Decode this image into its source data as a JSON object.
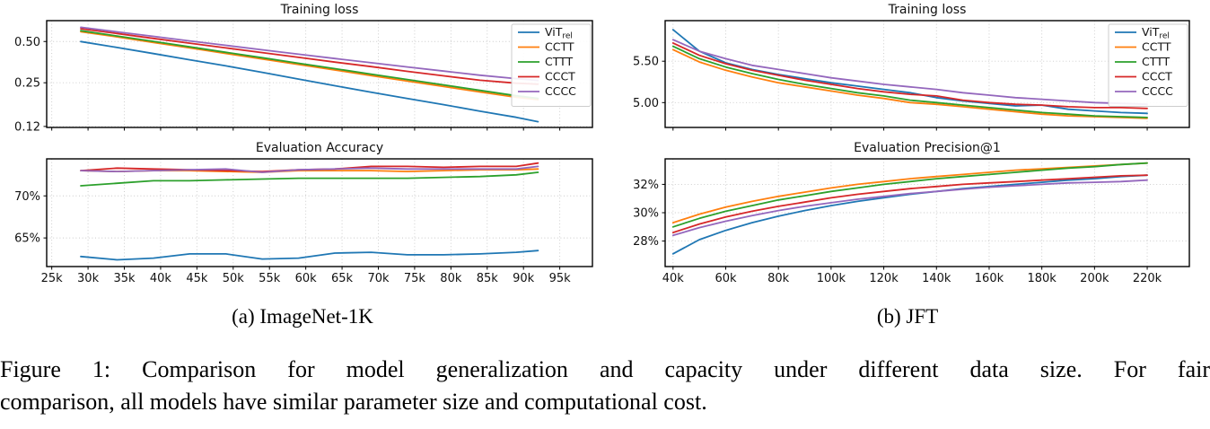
{
  "figure": {
    "subcaption_a": "(a) ImageNet-1K",
    "subcaption_b": "(b) JFT",
    "caption_line1": "Figure 1: Comparison for model generalization and capacity under different data size. For fair",
    "caption_line2": "comparison, all models have similar parameter size and computational cost."
  },
  "palette": {
    "blue": "#1f77b4",
    "orange": "#ff7f0e",
    "green": "#2ca02c",
    "red": "#d62728",
    "purple": "#9467bd",
    "grid": "#c9c9c9",
    "axis": "#000000"
  },
  "chart_data": [
    {
      "id": "imagenet-training-loss",
      "type": "line",
      "title": "Training loss",
      "yscale": "log",
      "grid": true,
      "legend": true,
      "legend_position": "top-right",
      "xlim": [
        24.3,
        99.5
      ],
      "ylim": [
        0.118,
        0.71
      ],
      "xticks": {
        "values": [
          25,
          30,
          35,
          40,
          45,
          50,
          55,
          60,
          65,
          70,
          75,
          80,
          85,
          90,
          95
        ],
        "labels": null
      },
      "yticks": {
        "values": [
          0.5,
          0.25,
          0.12
        ],
        "labels": [
          "0.50",
          "0.25",
          "0.12"
        ]
      },
      "x": [
        29,
        34,
        39,
        44,
        49,
        54,
        59,
        64,
        69,
        74,
        79,
        84,
        89,
        92
      ],
      "series": [
        {
          "name": "ViT_rel",
          "color": "#1f77b4",
          "values": [
            0.5,
            0.452,
            0.408,
            0.368,
            0.332,
            0.298,
            0.266,
            0.238,
            0.213,
            0.192,
            0.173,
            0.155,
            0.14,
            0.13
          ]
        },
        {
          "name": "CCTT",
          "color": "#ff7f0e",
          "values": [
            0.59,
            0.54,
            0.492,
            0.449,
            0.409,
            0.373,
            0.34,
            0.31,
            0.282,
            0.257,
            0.235,
            0.214,
            0.196,
            0.188
          ]
        },
        {
          "name": "CTTT",
          "color": "#2ca02c",
          "values": [
            0.6,
            0.549,
            0.501,
            0.457,
            0.417,
            0.381,
            0.347,
            0.317,
            0.289,
            0.264,
            0.241,
            0.22,
            0.201,
            0.192
          ]
        },
        {
          "name": "CCCT",
          "color": "#d62728",
          "values": [
            0.62,
            0.572,
            0.527,
            0.486,
            0.449,
            0.415,
            0.383,
            0.354,
            0.328,
            0.303,
            0.281,
            0.261,
            0.248,
            0.244
          ]
        },
        {
          "name": "CCCC",
          "color": "#9467bd",
          "values": [
            0.635,
            0.588,
            0.545,
            0.505,
            0.469,
            0.435,
            0.404,
            0.376,
            0.35,
            0.326,
            0.304,
            0.284,
            0.268,
            0.26
          ]
        }
      ]
    },
    {
      "id": "imagenet-eval-accuracy",
      "type": "line",
      "title": "Evaluation Accuracy",
      "yscale": "linear",
      "grid": true,
      "legend": false,
      "xlim": [
        24.3,
        99.5
      ],
      "ylim": [
        61.6,
        74.4
      ],
      "xticks": {
        "values": [
          25,
          30,
          35,
          40,
          45,
          50,
          55,
          60,
          65,
          70,
          75,
          80,
          85,
          90,
          95
        ],
        "labels": [
          "25k",
          "30k",
          "35k",
          "40k",
          "45k",
          "50k",
          "55k",
          "60k",
          "65k",
          "70k",
          "75k",
          "80k",
          "85k",
          "90k",
          "95k"
        ]
      },
      "yticks": {
        "values": [
          70,
          65
        ],
        "labels": [
          "70%",
          "65%"
        ]
      },
      "x": [
        29,
        34,
        39,
        44,
        49,
        54,
        59,
        64,
        69,
        74,
        79,
        84,
        89,
        92
      ],
      "series": [
        {
          "name": "ViT_rel",
          "color": "#1f77b4",
          "values": [
            62.8,
            62.4,
            62.6,
            63.1,
            63.1,
            62.5,
            62.6,
            63.2,
            63.3,
            63.0,
            63.0,
            63.1,
            63.3,
            63.5
          ]
        },
        {
          "name": "CCTT",
          "color": "#ff7f0e",
          "values": [
            73.0,
            72.9,
            73.0,
            73.0,
            72.9,
            72.8,
            73.0,
            73.0,
            73.0,
            72.9,
            73.0,
            73.1,
            73.1,
            73.2
          ]
        },
        {
          "name": "CTTT",
          "color": "#2ca02c",
          "values": [
            71.2,
            71.5,
            71.8,
            71.8,
            71.9,
            72.0,
            72.1,
            72.1,
            72.1,
            72.1,
            72.2,
            72.3,
            72.5,
            72.8
          ]
        },
        {
          "name": "CCCT",
          "color": "#d62728",
          "values": [
            73.0,
            73.3,
            73.2,
            73.1,
            73.0,
            72.9,
            73.1,
            73.2,
            73.5,
            73.5,
            73.4,
            73.5,
            73.5,
            73.9
          ]
        },
        {
          "name": "CCCC",
          "color": "#9467bd",
          "values": [
            73.0,
            72.9,
            73.0,
            73.1,
            73.2,
            72.8,
            73.1,
            73.2,
            73.3,
            73.2,
            73.2,
            73.2,
            73.2,
            73.5
          ]
        }
      ]
    },
    {
      "id": "jft-training-loss",
      "type": "line",
      "title": "Training loss",
      "yscale": "linear",
      "grid": true,
      "legend": true,
      "legend_position": "top-right",
      "xlim": [
        37,
        236
      ],
      "ylim": [
        4.7,
        5.99
      ],
      "xticks": {
        "values": [
          40,
          60,
          80,
          100,
          120,
          140,
          160,
          180,
          200,
          220
        ],
        "labels": null
      },
      "yticks": {
        "values": [
          5.5,
          5.0
        ],
        "labels": [
          "5.50",
          "5.00"
        ]
      },
      "x": [
        40,
        50,
        60,
        70,
        80,
        90,
        100,
        110,
        120,
        130,
        140,
        150,
        160,
        170,
        180,
        190,
        200,
        210,
        220
      ],
      "series": [
        {
          "name": "ViT_rel",
          "color": "#1f77b4",
          "values": [
            5.88,
            5.62,
            5.48,
            5.4,
            5.34,
            5.29,
            5.24,
            5.2,
            5.16,
            5.12,
            5.06,
            5.02,
            4.99,
            4.96,
            4.97,
            4.92,
            4.9,
            4.88,
            4.87
          ]
        },
        {
          "name": "CCTT",
          "color": "#ff7f0e",
          "values": [
            5.64,
            5.49,
            5.39,
            5.31,
            5.24,
            5.19,
            5.14,
            5.09,
            5.05,
            5.0,
            4.98,
            4.95,
            4.92,
            4.89,
            4.86,
            4.84,
            4.83,
            4.82,
            4.81
          ]
        },
        {
          "name": "CTTT",
          "color": "#2ca02c",
          "values": [
            5.68,
            5.53,
            5.43,
            5.35,
            5.28,
            5.22,
            5.17,
            5.12,
            5.08,
            5.03,
            5.0,
            4.97,
            4.94,
            4.91,
            4.88,
            4.86,
            4.84,
            4.83,
            4.82
          ]
        },
        {
          "name": "CCCT",
          "color": "#d62728",
          "values": [
            5.72,
            5.57,
            5.47,
            5.39,
            5.33,
            5.27,
            5.22,
            5.17,
            5.13,
            5.1,
            5.08,
            5.03,
            5.0,
            4.98,
            4.97,
            4.95,
            4.94,
            4.94,
            4.93
          ]
        },
        {
          "name": "CCCC",
          "color": "#9467bd",
          "values": [
            5.76,
            5.62,
            5.53,
            5.45,
            5.4,
            5.35,
            5.3,
            5.26,
            5.22,
            5.19,
            5.16,
            5.12,
            5.09,
            5.06,
            5.04,
            5.02,
            5.0,
            4.99,
            4.98
          ]
        }
      ]
    },
    {
      "id": "jft-eval-precision",
      "type": "line",
      "title": "Evaluation Precision@1",
      "yscale": "linear",
      "grid": true,
      "legend": false,
      "xlim": [
        37,
        236
      ],
      "ylim": [
        26.2,
        33.8
      ],
      "xticks": {
        "values": [
          40,
          60,
          80,
          100,
          120,
          140,
          160,
          180,
          200,
          220
        ],
        "labels": [
          "40k",
          "60k",
          "80k",
          "100k",
          "120k",
          "140k",
          "160k",
          "180k",
          "200k",
          "220k"
        ]
      },
      "yticks": {
        "values": [
          32,
          30,
          28
        ],
        "labels": [
          "32%",
          "30%",
          "28%"
        ]
      },
      "x": [
        40,
        50,
        60,
        70,
        80,
        90,
        100,
        110,
        120,
        130,
        140,
        150,
        160,
        170,
        180,
        190,
        200,
        210,
        220
      ],
      "series": [
        {
          "name": "ViT_rel",
          "color": "#1f77b4",
          "values": [
            27.1,
            28.1,
            28.75,
            29.3,
            29.75,
            30.15,
            30.5,
            30.8,
            31.05,
            31.3,
            31.5,
            31.7,
            31.85,
            32.0,
            32.15,
            32.3,
            32.4,
            32.55,
            32.65
          ]
        },
        {
          "name": "CCTT",
          "color": "#ff7f0e",
          "values": [
            29.3,
            29.9,
            30.4,
            30.8,
            31.15,
            31.45,
            31.75,
            32.0,
            32.2,
            32.4,
            32.55,
            32.7,
            32.85,
            33.0,
            33.1,
            33.2,
            33.3,
            33.4,
            33.5
          ]
        },
        {
          "name": "CTTT",
          "color": "#2ca02c",
          "values": [
            29.0,
            29.6,
            30.1,
            30.5,
            30.9,
            31.2,
            31.5,
            31.75,
            32.0,
            32.2,
            32.4,
            32.55,
            32.7,
            32.85,
            33.0,
            33.15,
            33.25,
            33.4,
            33.5
          ]
        },
        {
          "name": "CCCT",
          "color": "#d62728",
          "values": [
            28.6,
            29.2,
            29.7,
            30.1,
            30.45,
            30.75,
            31.05,
            31.3,
            31.5,
            31.7,
            31.85,
            32.0,
            32.1,
            32.2,
            32.3,
            32.4,
            32.5,
            32.6,
            32.65
          ]
        },
        {
          "name": "CCCC",
          "color": "#9467bd",
          "values": [
            28.4,
            28.95,
            29.4,
            29.8,
            30.15,
            30.45,
            30.7,
            30.95,
            31.15,
            31.35,
            31.5,
            31.65,
            31.8,
            31.9,
            32.0,
            32.1,
            32.15,
            32.2,
            32.3
          ]
        }
      ]
    }
  ]
}
